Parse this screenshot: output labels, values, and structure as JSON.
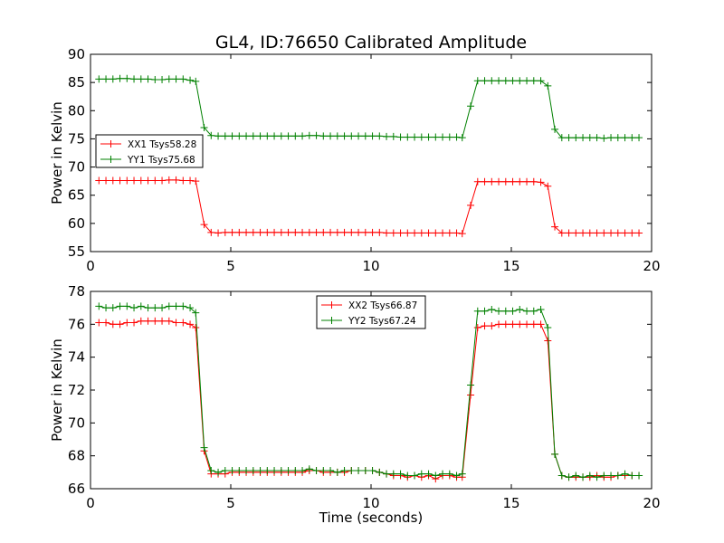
{
  "chart_data": [
    {
      "type": "line",
      "title": "GL4, ID:76650 Calibrated Amplitude",
      "xlabel": "",
      "ylabel": "Power in Kelvin",
      "xlim": [
        0,
        20
      ],
      "ylim": [
        55,
        90
      ],
      "xticks": [
        "0",
        "5",
        "10",
        "15",
        "20"
      ],
      "yticks": [
        "55",
        "60",
        "65",
        "70",
        "75",
        "80",
        "85",
        "90"
      ],
      "legend_position": "center-left",
      "grid": false,
      "series": [
        {
          "name": "XX1 Tsys58.28",
          "color": "#ff0000",
          "x": [
            0.3,
            0.55,
            0.8,
            1.05,
            1.3,
            1.55,
            1.8,
            2.05,
            2.3,
            2.55,
            2.8,
            3.05,
            3.3,
            3.55,
            3.75,
            4.05,
            4.3,
            4.55,
            4.8,
            5.05,
            5.3,
            5.55,
            5.8,
            6.05,
            6.3,
            6.55,
            6.8,
            7.05,
            7.3,
            7.55,
            7.8,
            8.05,
            8.3,
            8.55,
            8.8,
            9.05,
            9.3,
            9.55,
            9.8,
            10.05,
            10.3,
            10.55,
            10.8,
            11.05,
            11.3,
            11.55,
            11.8,
            12.05,
            12.3,
            12.55,
            12.8,
            13.05,
            13.25,
            13.55,
            13.8,
            14.05,
            14.3,
            14.55,
            14.8,
            15.05,
            15.3,
            15.55,
            15.8,
            16.05,
            16.3,
            16.55,
            16.8,
            17.05,
            17.3,
            17.55,
            17.8,
            18.05,
            18.3,
            18.55,
            18.8,
            19.05,
            19.3,
            19.55
          ],
          "values": [
            67.6,
            67.6,
            67.6,
            67.6,
            67.6,
            67.6,
            67.6,
            67.6,
            67.6,
            67.6,
            67.7,
            67.7,
            67.6,
            67.6,
            67.5,
            59.8,
            58.4,
            58.3,
            58.4,
            58.4,
            58.4,
            58.4,
            58.4,
            58.4,
            58.4,
            58.4,
            58.4,
            58.4,
            58.4,
            58.4,
            58.4,
            58.4,
            58.4,
            58.4,
            58.4,
            58.4,
            58.4,
            58.4,
            58.4,
            58.4,
            58.4,
            58.3,
            58.3,
            58.3,
            58.3,
            58.3,
            58.3,
            58.3,
            58.3,
            58.3,
            58.3,
            58.3,
            58.2,
            63.2,
            67.4,
            67.4,
            67.4,
            67.4,
            67.4,
            67.4,
            67.4,
            67.4,
            67.4,
            67.3,
            66.6,
            59.4,
            58.3,
            58.3,
            58.3,
            58.3,
            58.3,
            58.3,
            58.3,
            58.3,
            58.3,
            58.3,
            58.3,
            58.3
          ]
        },
        {
          "name": "YY1 Tsys75.68",
          "color": "#008000",
          "x": [
            0.3,
            0.55,
            0.8,
            1.05,
            1.3,
            1.55,
            1.8,
            2.05,
            2.3,
            2.55,
            2.8,
            3.05,
            3.3,
            3.55,
            3.75,
            4.05,
            4.3,
            4.55,
            4.8,
            5.05,
            5.3,
            5.55,
            5.8,
            6.05,
            6.3,
            6.55,
            6.8,
            7.05,
            7.3,
            7.55,
            7.8,
            8.05,
            8.3,
            8.55,
            8.8,
            9.05,
            9.3,
            9.55,
            9.8,
            10.05,
            10.3,
            10.55,
            10.8,
            11.05,
            11.3,
            11.55,
            11.8,
            12.05,
            12.3,
            12.55,
            12.8,
            13.05,
            13.25,
            13.55,
            13.8,
            14.05,
            14.3,
            14.55,
            14.8,
            15.05,
            15.3,
            15.55,
            15.8,
            16.05,
            16.3,
            16.55,
            16.8,
            17.05,
            17.3,
            17.55,
            17.8,
            18.05,
            18.3,
            18.55,
            18.8,
            19.05,
            19.3,
            19.55
          ],
          "values": [
            85.6,
            85.6,
            85.6,
            85.7,
            85.7,
            85.6,
            85.6,
            85.6,
            85.5,
            85.5,
            85.6,
            85.6,
            85.6,
            85.4,
            85.2,
            77.0,
            75.6,
            75.5,
            75.5,
            75.5,
            75.5,
            75.5,
            75.5,
            75.5,
            75.5,
            75.5,
            75.5,
            75.5,
            75.5,
            75.5,
            75.6,
            75.6,
            75.5,
            75.5,
            75.5,
            75.5,
            75.5,
            75.5,
            75.5,
            75.5,
            75.5,
            75.4,
            75.4,
            75.3,
            75.3,
            75.3,
            75.3,
            75.3,
            75.3,
            75.3,
            75.3,
            75.3,
            75.2,
            80.8,
            85.3,
            85.3,
            85.3,
            85.3,
            85.3,
            85.3,
            85.3,
            85.3,
            85.3,
            85.3,
            84.4,
            76.7,
            75.2,
            75.2,
            75.2,
            75.2,
            75.2,
            75.2,
            75.1,
            75.2,
            75.2,
            75.2,
            75.2,
            75.2
          ]
        }
      ]
    },
    {
      "type": "line",
      "title": "",
      "xlabel": "Time (seconds)",
      "ylabel": "Power in Kelvin",
      "xlim": [
        0,
        20
      ],
      "ylim": [
        66,
        78
      ],
      "xticks": [
        "0",
        "5",
        "10",
        "15",
        "20"
      ],
      "yticks": [
        "66",
        "68",
        "70",
        "72",
        "74",
        "76",
        "78"
      ],
      "legend_position": "upper-center",
      "grid": false,
      "series": [
        {
          "name": "XX2 Tsys66.87",
          "color": "#ff0000",
          "x": [
            0.3,
            0.55,
            0.8,
            1.05,
            1.3,
            1.55,
            1.8,
            2.05,
            2.3,
            2.55,
            2.8,
            3.05,
            3.3,
            3.55,
            3.75,
            4.05,
            4.3,
            4.55,
            4.8,
            5.05,
            5.3,
            5.55,
            5.8,
            6.05,
            6.3,
            6.55,
            6.8,
            7.05,
            7.3,
            7.55,
            7.8,
            8.05,
            8.3,
            8.55,
            8.8,
            9.05,
            9.3,
            9.55,
            9.8,
            10.05,
            10.3,
            10.55,
            10.8,
            11.05,
            11.3,
            11.55,
            11.8,
            12.05,
            12.3,
            12.55,
            12.8,
            13.05,
            13.25,
            13.55,
            13.8,
            14.05,
            14.3,
            14.55,
            14.8,
            15.05,
            15.3,
            15.55,
            15.8,
            16.05,
            16.3,
            16.55,
            16.8,
            17.05,
            17.3,
            17.55,
            17.8,
            18.05,
            18.3,
            18.55,
            18.8,
            19.05,
            19.3,
            19.55
          ],
          "values": [
            76.1,
            76.1,
            76.0,
            76.0,
            76.1,
            76.1,
            76.2,
            76.2,
            76.2,
            76.2,
            76.2,
            76.1,
            76.1,
            76.0,
            75.8,
            68.3,
            66.9,
            66.9,
            66.9,
            67.0,
            67.0,
            67.0,
            67.0,
            67.0,
            67.0,
            67.0,
            67.0,
            67.0,
            67.0,
            67.0,
            67.1,
            67.1,
            67.0,
            67.0,
            67.0,
            67.0,
            67.1,
            67.1,
            67.1,
            67.1,
            67.0,
            66.9,
            66.8,
            66.8,
            66.7,
            66.8,
            66.7,
            66.8,
            66.6,
            66.8,
            66.8,
            66.7,
            66.7,
            71.7,
            75.8,
            75.9,
            75.9,
            76.0,
            76.0,
            76.0,
            76.0,
            76.0,
            76.0,
            76.0,
            75.0,
            68.1,
            66.8,
            66.7,
            66.7,
            66.7,
            66.7,
            66.8,
            66.7,
            66.7,
            66.8,
            66.8,
            66.8,
            66.8
          ]
        },
        {
          "name": "YY2 Tsys67.24",
          "color": "#008000",
          "x": [
            0.3,
            0.55,
            0.8,
            1.05,
            1.3,
            1.55,
            1.8,
            2.05,
            2.3,
            2.55,
            2.8,
            3.05,
            3.3,
            3.55,
            3.75,
            4.05,
            4.3,
            4.55,
            4.8,
            5.05,
            5.3,
            5.55,
            5.8,
            6.05,
            6.3,
            6.55,
            6.8,
            7.05,
            7.3,
            7.55,
            7.8,
            8.05,
            8.3,
            8.55,
            8.8,
            9.05,
            9.3,
            9.55,
            9.8,
            10.05,
            10.3,
            10.55,
            10.8,
            11.05,
            11.3,
            11.55,
            11.8,
            12.05,
            12.3,
            12.55,
            12.8,
            13.05,
            13.25,
            13.55,
            13.8,
            14.05,
            14.3,
            14.55,
            14.8,
            15.05,
            15.3,
            15.55,
            15.8,
            16.05,
            16.3,
            16.55,
            16.8,
            17.05,
            17.3,
            17.55,
            17.8,
            18.05,
            18.3,
            18.55,
            18.8,
            19.05,
            19.3,
            19.55
          ],
          "values": [
            77.1,
            77.0,
            77.0,
            77.1,
            77.1,
            77.0,
            77.1,
            77.0,
            77.0,
            77.0,
            77.1,
            77.1,
            77.1,
            77.0,
            76.7,
            68.5,
            67.1,
            67.0,
            67.1,
            67.1,
            67.1,
            67.1,
            67.1,
            67.1,
            67.1,
            67.1,
            67.1,
            67.1,
            67.1,
            67.1,
            67.2,
            67.1,
            67.1,
            67.1,
            67.0,
            67.1,
            67.1,
            67.1,
            67.1,
            67.1,
            67.0,
            66.9,
            66.9,
            66.9,
            66.8,
            66.8,
            66.9,
            66.9,
            66.8,
            66.9,
            66.9,
            66.8,
            66.9,
            72.3,
            76.8,
            76.8,
            76.9,
            76.8,
            76.8,
            76.8,
            76.9,
            76.8,
            76.8,
            76.9,
            75.8,
            68.1,
            66.8,
            66.7,
            66.8,
            66.7,
            66.8,
            66.7,
            66.8,
            66.8,
            66.8,
            66.9,
            66.8,
            66.8
          ]
        }
      ]
    }
  ]
}
